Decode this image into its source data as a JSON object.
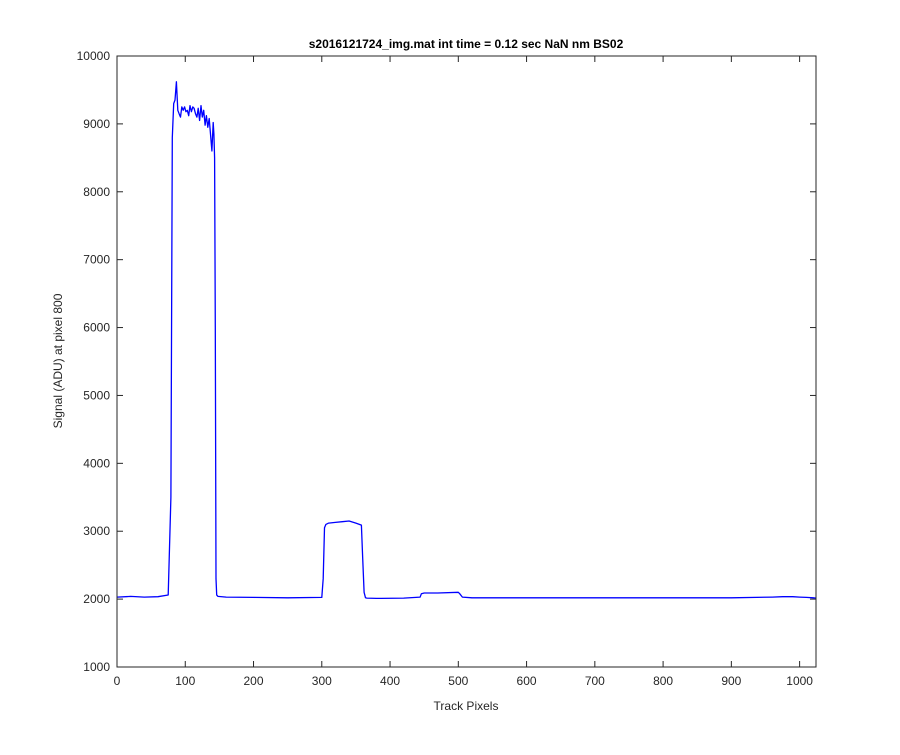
{
  "figure": {
    "background": "#ffffff"
  },
  "chart_data": {
    "type": "line",
    "title": "s2016121724_img.mat int time = 0.12 sec  NaN nm BS02",
    "xlabel": "Track Pixels",
    "ylabel": "Signal (ADU) at pixel 800",
    "xlim": [
      0,
      1024
    ],
    "ylim": [
      1000,
      10000
    ],
    "xticks": [
      0,
      100,
      200,
      300,
      400,
      500,
      600,
      700,
      800,
      900,
      1000
    ],
    "yticks": [
      1000,
      2000,
      3000,
      4000,
      5000,
      6000,
      7000,
      8000,
      9000,
      10000
    ],
    "xtick_labels": [
      "0",
      "100",
      "200",
      "300",
      "400",
      "500",
      "600",
      "700",
      "800",
      "900",
      "1000"
    ],
    "ytick_labels": [
      "1000",
      "2000",
      "3000",
      "4000",
      "5000",
      "6000",
      "7000",
      "8000",
      "9000",
      "10000"
    ],
    "grid": false,
    "line_color": "#0000ff",
    "series": [
      {
        "x": [
          0,
          20,
          40,
          60,
          75,
          79,
          81,
          83,
          85,
          87,
          89,
          91,
          93,
          95,
          97,
          99,
          101,
          103,
          105,
          107,
          109,
          111,
          113,
          115,
          117,
          119,
          121,
          123,
          125,
          127,
          129,
          131,
          133,
          135,
          137,
          139,
          141,
          142,
          143,
          144,
          145,
          146,
          148,
          160,
          200,
          250,
          300,
          302,
          304,
          306,
          310,
          320,
          330,
          340,
          350,
          358,
          360,
          362,
          364,
          366,
          380,
          420,
          444,
          446,
          450,
          470,
          500,
          502,
          506,
          520,
          600,
          700,
          800,
          900,
          960,
          975,
          990,
          1000,
          1010,
          1020,
          1024
        ],
        "y": [
          2030,
          2040,
          2030,
          2035,
          2060,
          3500,
          8800,
          9300,
          9350,
          9620,
          9200,
          9150,
          9100,
          9250,
          9200,
          9250,
          9180,
          9200,
          9120,
          9270,
          9180,
          9250,
          9230,
          9150,
          9100,
          9230,
          9050,
          9270,
          9100,
          9200,
          8980,
          9120,
          8950,
          9080,
          8850,
          8600,
          9020,
          8850,
          8500,
          6000,
          2300,
          2060,
          2040,
          2030,
          2025,
          2020,
          2025,
          2300,
          3050,
          3100,
          3120,
          3130,
          3140,
          3150,
          3120,
          3090,
          2600,
          2100,
          2020,
          2015,
          2010,
          2015,
          2030,
          2080,
          2090,
          2090,
          2100,
          2080,
          2030,
          2020,
          2020,
          2020,
          2020,
          2020,
          2030,
          2035,
          2035,
          2030,
          2025,
          2020,
          2015
        ]
      }
    ]
  }
}
